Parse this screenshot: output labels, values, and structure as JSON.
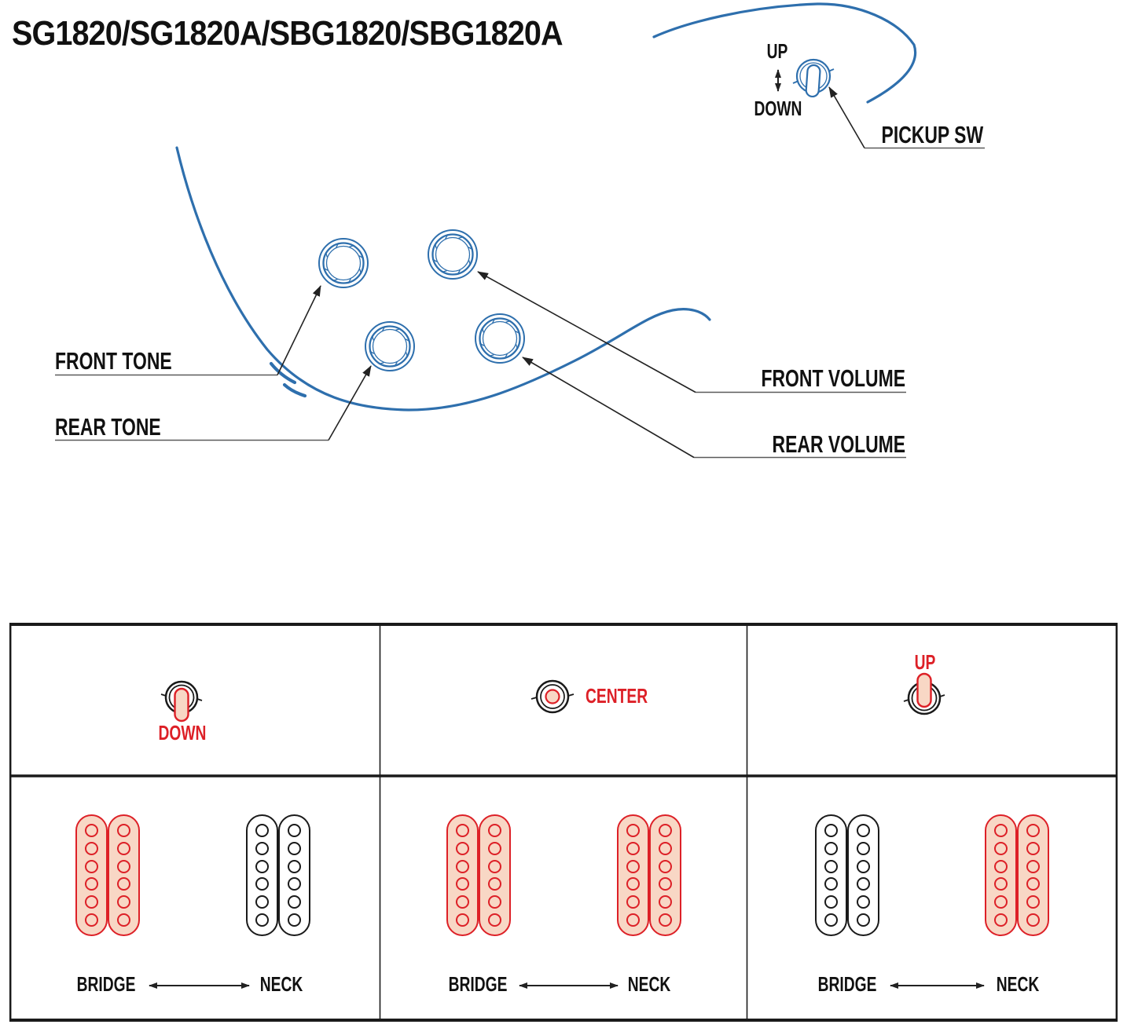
{
  "title": "SG1820/SG1820A/SBG1820/SBG1820A",
  "colors": {
    "blue": "#2e6fad",
    "red": "#dd2027",
    "pink_fill": "#f8d7c5",
    "black": "#1a1a1a"
  },
  "diagram": {
    "pickup_switch": {
      "up": "UP",
      "down": "DOWN",
      "label": "PICKUP SW"
    },
    "knob_labels": {
      "front_tone": "FRONT TONE",
      "rear_tone": "REAR TONE",
      "front_volume": "FRONT VOLUME",
      "rear_volume": "REAR VOLUME"
    }
  },
  "switch_table": {
    "columns": [
      {
        "position": "DOWN",
        "active_pickups": {
          "bridge": "active",
          "neck": "inactive"
        },
        "bridge_label": "BRIDGE",
        "neck_label": "NECK"
      },
      {
        "position": "CENTER",
        "active_pickups": {
          "bridge": "active",
          "neck": "active"
        },
        "bridge_label": "BRIDGE",
        "neck_label": "NECK"
      },
      {
        "position": "UP",
        "active_pickups": {
          "bridge": "inactive",
          "neck": "active"
        },
        "bridge_label": "BRIDGE",
        "neck_label": "NECK"
      }
    ]
  }
}
